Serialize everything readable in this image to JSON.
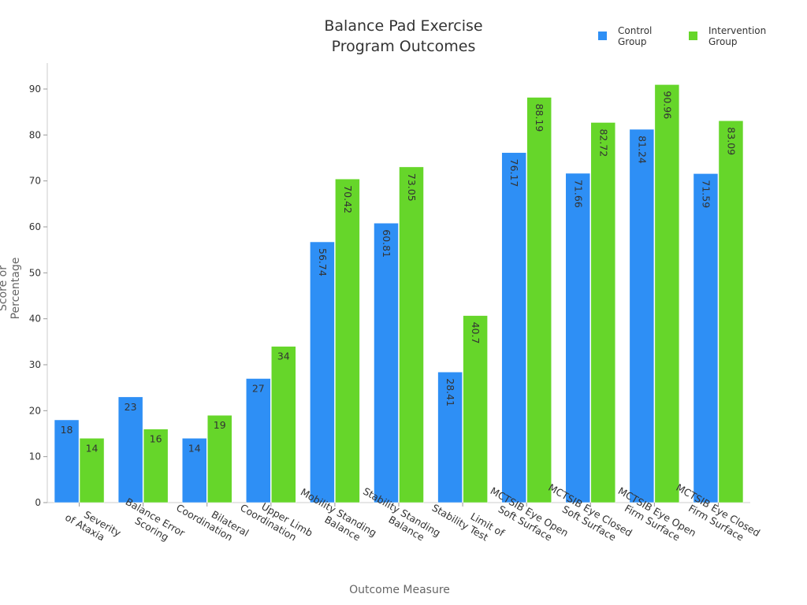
{
  "chart_data": {
    "type": "bar",
    "title_line1": "Balance Pad Exercise",
    "title_line2": "Program Outcomes",
    "xlabel": "Outcome Measure",
    "ylabel": "Score or Percentage",
    "ylim": [
      0,
      95
    ],
    "yticks": [
      0,
      10,
      20,
      30,
      40,
      50,
      60,
      70,
      80,
      90
    ],
    "grid": false,
    "legend_position": "top-right",
    "categories": [
      "Severity\nof Ataxia",
      "Balance Error\nScoring",
      "Bilateral\nCoordination",
      "Upper Limb\nCoordination",
      "Mobility Standing\nBalance",
      "Stability Standing\nBalance",
      "Limit of\nStability Test",
      "MCTSIB Eye Open\nSoft Surface",
      "MCTSIB Eye Closed\nSoft Surface",
      "MCTSIB Eye Open\nFirm Surface",
      "MCTSIB Eye Closed\nFirm Surface"
    ],
    "series": [
      {
        "name": "Control Group",
        "color": "#2e8ff5",
        "values": [
          18,
          23,
          14,
          27,
          56.74,
          60.81,
          28.41,
          76.17,
          71.66,
          81.24,
          71.59
        ]
      },
      {
        "name": "Intervention Group",
        "color": "#66d62a",
        "values": [
          14,
          16,
          19,
          34,
          70.42,
          73.05,
          40.7,
          88.19,
          82.72,
          90.96,
          83.09
        ]
      }
    ],
    "legend_labels": [
      "Control\nGroup",
      "Intervention\nGroup"
    ]
  }
}
